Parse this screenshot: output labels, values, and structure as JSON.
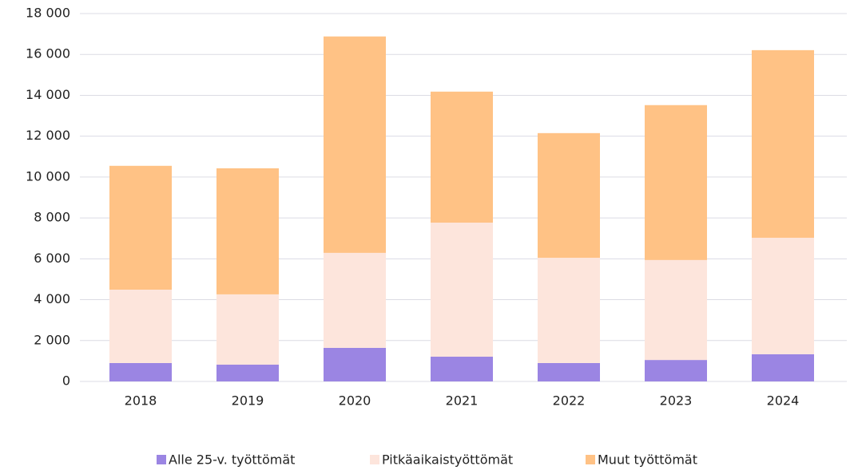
{
  "chart_data": {
    "type": "stacked_bar",
    "categories": [
      "2018",
      "2019",
      "2020",
      "2021",
      "2022",
      "2023",
      "2024"
    ],
    "series": [
      {
        "name": "Alle 25-v. työttömät",
        "color": "#9b85e3",
        "values": [
          900,
          820,
          1640,
          1210,
          900,
          1050,
          1330
        ]
      },
      {
        "name": "Pitkäaikaistyöttömät",
        "color": "#fde5dc",
        "values": [
          3590,
          3440,
          4650,
          6560,
          5150,
          4890,
          5700
        ]
      },
      {
        "name": "Muut työttömät",
        "color": "#ffc285",
        "values": [
          6060,
          6170,
          10590,
          6410,
          6100,
          7580,
          9180
        ]
      }
    ],
    "ylim": [
      0,
      18000
    ],
    "yticks": [
      0,
      {
        "value": 2000,
        "label": "2 000"
      },
      {
        "value": 4000,
        "label": "4 000"
      },
      {
        "value": 6000,
        "label": "6 000"
      },
      {
        "value": 8000,
        "label": "8 000"
      },
      {
        "value": 10000,
        "label": "10 000"
      },
      {
        "value": 12000,
        "label": "12 000"
      },
      {
        "value": 14000,
        "label": "14 000"
      },
      {
        "value": 16000,
        "label": "16 000"
      },
      {
        "value": 18000,
        "label": "18 000"
      }
    ],
    "grid": true,
    "legend": "bottom"
  }
}
